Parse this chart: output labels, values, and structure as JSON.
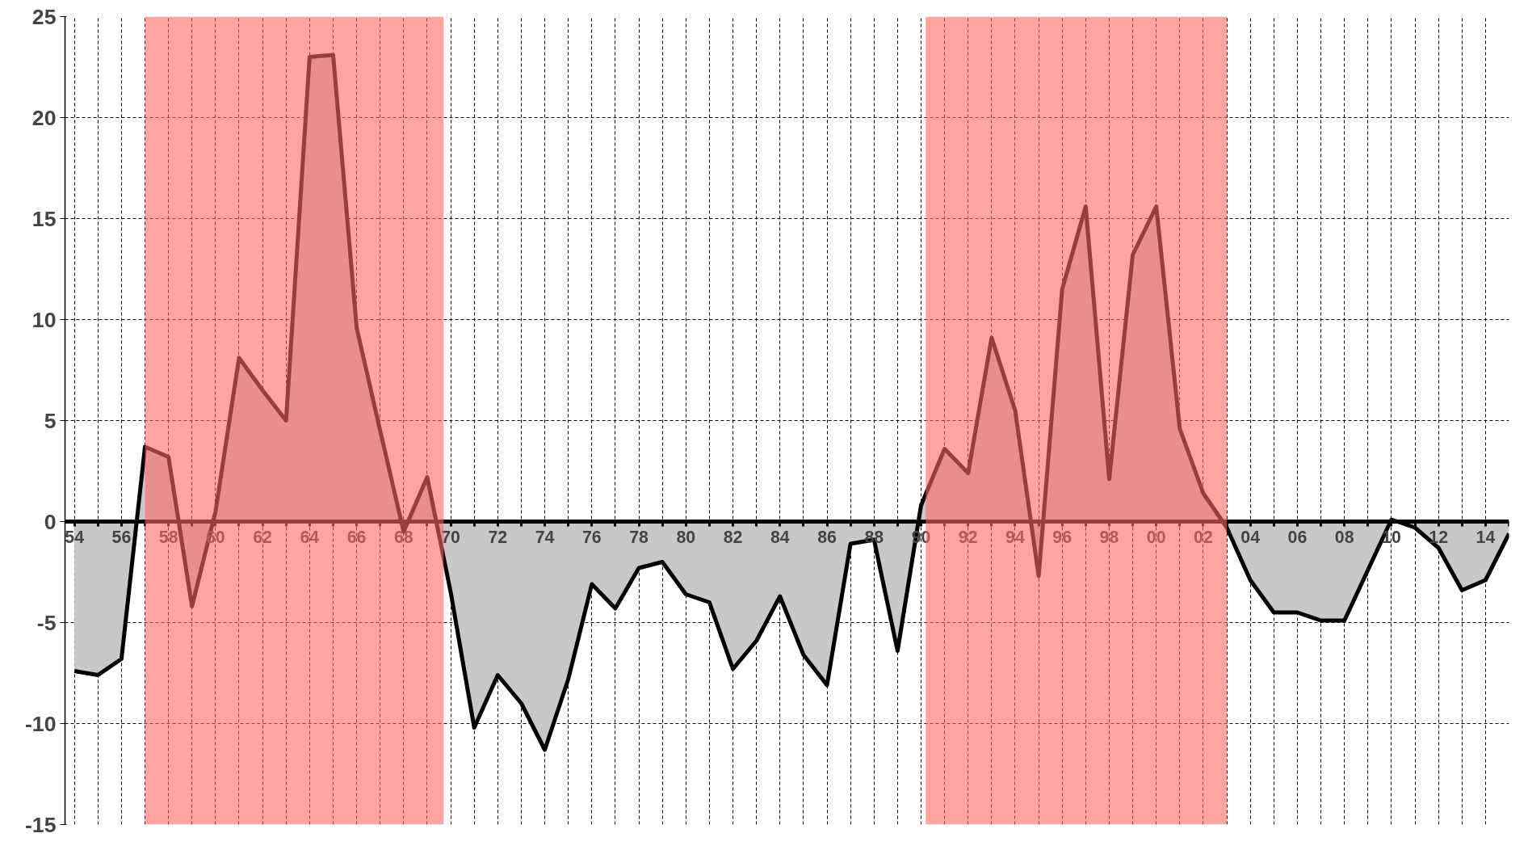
{
  "chart_data": {
    "type": "area",
    "x": [
      1954,
      1955,
      1956,
      1957,
      1958,
      1959,
      1960,
      1961,
      1962,
      1963,
      1964,
      1965,
      1966,
      1967,
      1968,
      1969,
      1970,
      1971,
      1972,
      1973,
      1974,
      1975,
      1976,
      1977,
      1978,
      1979,
      1980,
      1981,
      1982,
      1983,
      1984,
      1985,
      1986,
      1987,
      1988,
      1989,
      1990,
      1991,
      1992,
      1993,
      1994,
      1995,
      1996,
      1997,
      1998,
      1999,
      2000,
      2001,
      2002,
      2003,
      2004,
      2005,
      2006,
      2007,
      2008,
      2009,
      2010,
      2011,
      2012,
      2013,
      2014,
      2015
    ],
    "series": [
      {
        "color": "#c8c8c8",
        "values": [
          -7.4,
          -7.6,
          -6.8,
          3.7,
          3.2,
          -4.2,
          0.5,
          8.1,
          6.5,
          5.0,
          23.0,
          23.1,
          9.6,
          4.5,
          -0.5,
          2.2,
          -3.5,
          -10.2,
          -7.6,
          -9.0,
          -11.3,
          -7.8,
          -3.1,
          -4.3,
          -2.3,
          -2.0,
          -3.6,
          -4.0,
          -7.3,
          -5.9,
          -3.7,
          -6.6,
          -8.1,
          -1.1,
          -0.9,
          -6.4,
          0.8,
          3.6,
          2.4,
          9.1,
          5.5,
          -2.7,
          11.5,
          15.6,
          2.1,
          13.2,
          15.6,
          4.6,
          1.4,
          -0.3,
          -2.9,
          -4.5,
          -4.5,
          -4.9,
          -4.9,
          -2.4,
          0.1,
          -0.3,
          -1.3,
          -3.4,
          -2.9,
          -0.6
        ]
      }
    ],
    "xlim": [
      1953.6,
      2015
    ],
    "xticks": [
      {
        "value": 1954,
        "label": "54"
      },
      {
        "value": 1955,
        "label": null
      },
      {
        "value": 1956,
        "label": "56"
      },
      {
        "value": 1957,
        "label": null
      },
      {
        "value": 1958,
        "label": "58"
      },
      {
        "value": 1959,
        "label": null
      },
      {
        "value": 1960,
        "label": "60"
      },
      {
        "value": 1961,
        "label": null
      },
      {
        "value": 1962,
        "label": "62"
      },
      {
        "value": 1963,
        "label": null
      },
      {
        "value": 1964,
        "label": "64"
      },
      {
        "value": 1965,
        "label": null
      },
      {
        "value": 1966,
        "label": "66"
      },
      {
        "value": 1967,
        "label": null
      },
      {
        "value": 1968,
        "label": "68"
      },
      {
        "value": 1969,
        "label": null
      },
      {
        "value": 1970,
        "label": "70"
      },
      {
        "value": 1971,
        "label": null
      },
      {
        "value": 1972,
        "label": "72"
      },
      {
        "value": 1973,
        "label": null
      },
      {
        "value": 1974,
        "label": "74"
      },
      {
        "value": 1975,
        "label": null
      },
      {
        "value": 1976,
        "label": "76"
      },
      {
        "value": 1977,
        "label": null
      },
      {
        "value": 1978,
        "label": "78"
      },
      {
        "value": 1979,
        "label": null
      },
      {
        "value": 1980,
        "label": "80"
      },
      {
        "value": 1981,
        "label": null
      },
      {
        "value": 1982,
        "label": "82"
      },
      {
        "value": 1983,
        "label": null
      },
      {
        "value": 1984,
        "label": "84"
      },
      {
        "value": 1985,
        "label": null
      },
      {
        "value": 1986,
        "label": "86"
      },
      {
        "value": 1987,
        "label": null
      },
      {
        "value": 1988,
        "label": "88"
      },
      {
        "value": 1989,
        "label": null
      },
      {
        "value": 1990,
        "label": "90"
      },
      {
        "value": 1991,
        "label": null
      },
      {
        "value": 1992,
        "label": "92"
      },
      {
        "value": 1993,
        "label": null
      },
      {
        "value": 1994,
        "label": "94"
      },
      {
        "value": 1995,
        "label": null
      },
      {
        "value": 1996,
        "label": "96"
      },
      {
        "value": 1997,
        "label": null
      },
      {
        "value": 1998,
        "label": "98"
      },
      {
        "value": 1999,
        "label": null
      },
      {
        "value": 2000,
        "label": "00"
      },
      {
        "value": 2001,
        "label": null
      },
      {
        "value": 2002,
        "label": "02"
      },
      {
        "value": 2003,
        "label": null
      },
      {
        "value": 2004,
        "label": "04"
      },
      {
        "value": 2005,
        "label": null
      },
      {
        "value": 2006,
        "label": "06"
      },
      {
        "value": 2007,
        "label": null
      },
      {
        "value": 2008,
        "label": "08"
      },
      {
        "value": 2009,
        "label": null
      },
      {
        "value": 2010,
        "label": "10"
      },
      {
        "value": 2011,
        "label": null
      },
      {
        "value": 2012,
        "label": "12"
      },
      {
        "value": 2013,
        "label": null
      },
      {
        "value": 2014,
        "label": "14"
      },
      {
        "value": 2015,
        "label": null
      }
    ],
    "ylim": [
      -15,
      25
    ],
    "yticks": [
      -15,
      -10,
      -5,
      0,
      5,
      10,
      15,
      20,
      25
    ],
    "bands": [
      {
        "axis": "x",
        "from": 1957,
        "to": 1969.7,
        "color": "#ff6666"
      },
      {
        "axis": "x",
        "from": 1990.2,
        "to": 2003,
        "color": "#ff6666"
      }
    ],
    "grid": true
  }
}
